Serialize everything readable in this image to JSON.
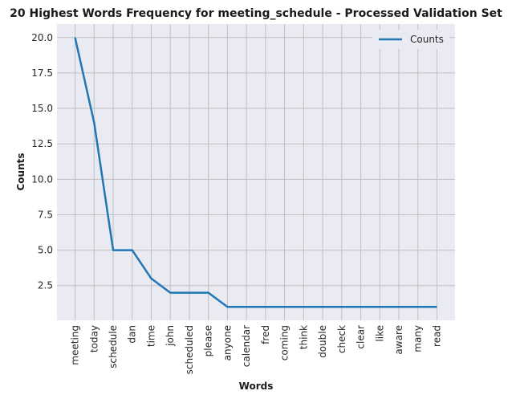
{
  "chart_data": {
    "type": "line",
    "title": "20 Highest Words Frequency for meeting_schedule - Processed Validation Set",
    "xlabel": "Words",
    "ylabel": "Counts",
    "categories": [
      "meeting",
      "today",
      "schedule",
      "dan",
      "time",
      "john",
      "scheduled",
      "please",
      "anyone",
      "calendar",
      "fred",
      "coming",
      "think",
      "double",
      "check",
      "clear",
      "like",
      "aware",
      "many",
      "read"
    ],
    "series": [
      {
        "name": "Counts",
        "values": [
          20,
          14,
          5,
          5,
          3,
          2,
          2,
          2,
          1,
          1,
          1,
          1,
          1,
          1,
          1,
          1,
          1,
          1,
          1,
          1
        ]
      }
    ],
    "ylim": [
      0.05,
      20.95
    ],
    "yticks": [
      2.5,
      5.0,
      7.5,
      10.0,
      12.5,
      15.0,
      17.5,
      20.0
    ],
    "ytick_labels": [
      "2.5",
      "5.0",
      "7.5",
      "10.0",
      "12.5",
      "15.0",
      "17.5",
      "20.0"
    ],
    "grid": true,
    "legend_position": "top-right",
    "colors": {
      "line": "#1f77b4",
      "plot_bg": "#eaeaf2",
      "grid": "#c0c0c0"
    }
  }
}
